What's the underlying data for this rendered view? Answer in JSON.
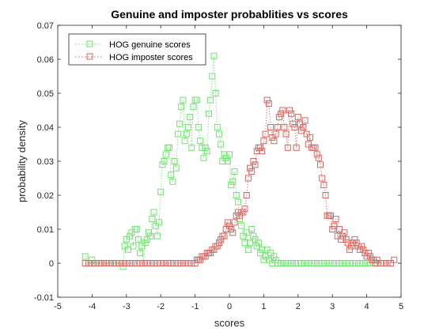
{
  "chart_data": {
    "type": "scatter",
    "title": "Genuine and imposter probablities vs scores",
    "xlabel": "scores",
    "ylabel": "probability density",
    "xlim": [
      -5,
      5
    ],
    "ylim": [
      -0.01,
      0.07
    ],
    "xticks": [
      "-5",
      "-4",
      "-3",
      "-2",
      "-1",
      "0",
      "1",
      "2",
      "3",
      "4",
      "5"
    ],
    "yticks": [
      "-0.01",
      "0",
      "0.01",
      "0.02",
      "0.03",
      "0.04",
      "0.05",
      "0.06",
      "0.07"
    ],
    "grid": false,
    "legend_position": "top-left",
    "series": [
      {
        "name": "HOG genuine scores",
        "color": "#6fe36f",
        "marker": "square",
        "line": "dotted",
        "points": [
          [
            -4.2,
            0.002
          ],
          [
            -4.1,
            0.0
          ],
          [
            -4.0,
            0.001
          ],
          [
            -3.9,
            0.0
          ],
          [
            -3.8,
            0.0
          ],
          [
            -3.7,
            0.0
          ],
          [
            -3.6,
            0.0
          ],
          [
            -3.5,
            0.0
          ],
          [
            -3.4,
            0.0
          ],
          [
            -3.3,
            0.0
          ],
          [
            -3.2,
            0.0
          ],
          [
            -3.1,
            -0.001
          ],
          [
            -3.05,
            0.005
          ],
          [
            -3.0,
            0.007
          ],
          [
            -2.95,
            0.004
          ],
          [
            -2.9,
            0.008
          ],
          [
            -2.85,
            0.009
          ],
          [
            -2.8,
            0.005
          ],
          [
            -2.75,
            0.01
          ],
          [
            -2.7,
            0.01
          ],
          [
            -2.65,
            0.007
          ],
          [
            -2.6,
            0.003
          ],
          [
            -2.55,
            0.005
          ],
          [
            -2.5,
            0.0
          ],
          [
            -2.45,
            0.006
          ],
          [
            -2.4,
            0.007
          ],
          [
            -2.35,
            0.009
          ],
          [
            -2.3,
            0.008
          ],
          [
            -2.25,
            0.013
          ],
          [
            -2.2,
            0.015
          ],
          [
            -2.15,
            0.011
          ],
          [
            -2.1,
            0.008
          ],
          [
            -2.05,
            0.012
          ],
          [
            -2.0,
            0.021
          ],
          [
            -1.95,
            0.029
          ],
          [
            -1.9,
            0.03
          ],
          [
            -1.85,
            0.032
          ],
          [
            -1.8,
            0.034
          ],
          [
            -1.75,
            0.034
          ],
          [
            -1.7,
            0.026
          ],
          [
            -1.65,
            0.024
          ],
          [
            -1.6,
            0.03
          ],
          [
            -1.55,
            0.028
          ],
          [
            -1.5,
            0.038
          ],
          [
            -1.45,
            0.041
          ],
          [
            -1.4,
            0.046
          ],
          [
            -1.35,
            0.048
          ],
          [
            -1.3,
            0.036
          ],
          [
            -1.25,
            0.038
          ],
          [
            -1.2,
            0.04
          ],
          [
            -1.15,
            0.043
          ],
          [
            -1.1,
            0.034
          ],
          [
            -1.05,
            0.046
          ],
          [
            -1.0,
            0.048
          ],
          [
            -0.95,
            0.048
          ],
          [
            -0.9,
            0.04
          ],
          [
            -0.85,
            0.036
          ],
          [
            -0.8,
            0.034
          ],
          [
            -0.75,
            0.031
          ],
          [
            -0.7,
            0.034
          ],
          [
            -0.65,
            0.033
          ],
          [
            -0.6,
            0.044
          ],
          [
            -0.55,
            0.048
          ],
          [
            -0.5,
            0.055
          ],
          [
            -0.45,
            0.061
          ],
          [
            -0.4,
            0.05
          ],
          [
            -0.35,
            0.04
          ],
          [
            -0.3,
            0.038
          ],
          [
            -0.25,
            0.035
          ],
          [
            -0.2,
            0.03
          ],
          [
            -0.15,
            0.032
          ],
          [
            -0.1,
            0.031
          ],
          [
            -0.05,
            0.03
          ],
          [
            0.0,
            0.032
          ],
          [
            0.05,
            0.023
          ],
          [
            0.1,
            0.024
          ],
          [
            0.15,
            0.027
          ],
          [
            0.2,
            0.02
          ],
          [
            0.25,
            0.018
          ],
          [
            0.3,
            0.013
          ],
          [
            0.35,
            0.011
          ],
          [
            0.4,
            0.008
          ],
          [
            0.45,
            0.006
          ],
          [
            0.5,
            0.009
          ],
          [
            0.55,
            0.004
          ],
          [
            0.6,
            0.006
          ],
          [
            0.65,
            0.01
          ],
          [
            0.7,
            0.008
          ],
          [
            0.75,
            0.007
          ],
          [
            0.8,
            0.005
          ],
          [
            0.85,
            0.006
          ],
          [
            0.9,
            0.003
          ],
          [
            0.95,
            0.004
          ],
          [
            1.0,
            0.001
          ],
          [
            1.05,
            0.002
          ],
          [
            1.1,
            0.004
          ],
          [
            1.15,
            0.001
          ],
          [
            1.2,
            0.003
          ],
          [
            1.25,
            0.0
          ],
          [
            1.3,
            0.002
          ],
          [
            1.35,
            0.001
          ],
          [
            1.4,
            0.0
          ],
          [
            1.5,
            0.0
          ],
          [
            1.6,
            0.0
          ],
          [
            1.7,
            0.0
          ],
          [
            1.8,
            0.0
          ],
          [
            1.9,
            0.0
          ],
          [
            2.0,
            0.0
          ],
          [
            2.1,
            0.0
          ],
          [
            2.2,
            0.0
          ],
          [
            2.3,
            0.0
          ],
          [
            2.4,
            0.0
          ],
          [
            2.5,
            0.0
          ],
          [
            2.6,
            0.0
          ],
          [
            2.7,
            0.0
          ],
          [
            2.8,
            0.0
          ],
          [
            2.9,
            0.0
          ],
          [
            3.0,
            0.0
          ],
          [
            3.1,
            0.0
          ],
          [
            3.2,
            0.0
          ],
          [
            3.3,
            0.0
          ],
          [
            3.4,
            0.0
          ],
          [
            3.5,
            0.0
          ],
          [
            3.6,
            0.0
          ],
          [
            3.7,
            0.0
          ],
          [
            3.8,
            0.0
          ],
          [
            3.9,
            0.0
          ],
          [
            4.0,
            0.0
          ],
          [
            4.1,
            0.0
          ],
          [
            4.2,
            0.0
          ],
          [
            4.3,
            0.0
          ],
          [
            4.4,
            0.0
          ]
        ]
      },
      {
        "name": "HOG imposter scores",
        "color": "#d9645f",
        "marker": "square",
        "line": "dotted",
        "points": [
          [
            -4.2,
            0.0
          ],
          [
            -4.1,
            0.0
          ],
          [
            -4.0,
            0.0
          ],
          [
            -3.9,
            0.0
          ],
          [
            -3.8,
            0.0
          ],
          [
            -3.7,
            0.0
          ],
          [
            -3.6,
            0.0
          ],
          [
            -3.5,
            0.0
          ],
          [
            -3.4,
            0.0
          ],
          [
            -3.3,
            0.0
          ],
          [
            -3.2,
            0.0
          ],
          [
            -3.1,
            0.0
          ],
          [
            -3.0,
            0.0
          ],
          [
            -2.9,
            0.0
          ],
          [
            -2.8,
            0.0
          ],
          [
            -2.7,
            0.0
          ],
          [
            -2.6,
            0.0
          ],
          [
            -2.5,
            0.0
          ],
          [
            -2.4,
            0.0
          ],
          [
            -2.3,
            0.0
          ],
          [
            -2.2,
            0.0
          ],
          [
            -2.1,
            0.0
          ],
          [
            -2.0,
            0.0
          ],
          [
            -1.9,
            0.0
          ],
          [
            -1.8,
            0.0
          ],
          [
            -1.7,
            0.0
          ],
          [
            -1.6,
            0.0
          ],
          [
            -1.5,
            0.0
          ],
          [
            -1.4,
            0.0
          ],
          [
            -1.3,
            0.0
          ],
          [
            -1.2,
            0.0
          ],
          [
            -1.1,
            0.0
          ],
          [
            -1.0,
            0.0
          ],
          [
            -0.95,
            0.001
          ],
          [
            -0.9,
            0.001
          ],
          [
            -0.85,
            0.001
          ],
          [
            -0.8,
            0.002
          ],
          [
            -0.75,
            0.002
          ],
          [
            -0.7,
            0.002
          ],
          [
            -0.65,
            0.003
          ],
          [
            -0.6,
            0.003
          ],
          [
            -0.55,
            0.003
          ],
          [
            -0.5,
            0.004
          ],
          [
            -0.45,
            0.004
          ],
          [
            -0.4,
            0.005
          ],
          [
            -0.35,
            0.005
          ],
          [
            -0.3,
            0.006
          ],
          [
            -0.25,
            0.007
          ],
          [
            -0.2,
            0.008
          ],
          [
            -0.15,
            0.008
          ],
          [
            -0.1,
            0.01
          ],
          [
            -0.05,
            0.012
          ],
          [
            0.0,
            0.011
          ],
          [
            0.05,
            0.01
          ],
          [
            0.1,
            0.009
          ],
          [
            0.15,
            0.012
          ],
          [
            0.2,
            0.014
          ],
          [
            0.25,
            0.015
          ],
          [
            0.3,
            0.014
          ],
          [
            0.35,
            0.015
          ],
          [
            0.4,
            0.015
          ],
          [
            0.45,
            0.016
          ],
          [
            0.5,
            0.02
          ],
          [
            0.55,
            0.025
          ],
          [
            0.6,
            0.028
          ],
          [
            0.65,
            0.027
          ],
          [
            0.7,
            0.03
          ],
          [
            0.75,
            0.029
          ],
          [
            0.8,
            0.033
          ],
          [
            0.85,
            0.034
          ],
          [
            0.9,
            0.034
          ],
          [
            0.95,
            0.033
          ],
          [
            1.0,
            0.036
          ],
          [
            1.05,
            0.038
          ],
          [
            1.1,
            0.048
          ],
          [
            1.15,
            0.047
          ],
          [
            1.2,
            0.04
          ],
          [
            1.25,
            0.037
          ],
          [
            1.3,
            0.036
          ],
          [
            1.35,
            0.038
          ],
          [
            1.4,
            0.04
          ],
          [
            1.45,
            0.043
          ],
          [
            1.5,
            0.044
          ],
          [
            1.55,
            0.045
          ],
          [
            1.6,
            0.04
          ],
          [
            1.65,
            0.038
          ],
          [
            1.7,
            0.034
          ],
          [
            1.75,
            0.045
          ],
          [
            1.8,
            0.044
          ],
          [
            1.85,
            0.041
          ],
          [
            1.9,
            0.04
          ],
          [
            1.95,
            0.034
          ],
          [
            2.0,
            0.043
          ],
          [
            2.05,
            0.041
          ],
          [
            2.1,
            0.039
          ],
          [
            2.15,
            0.04
          ],
          [
            2.2,
            0.042
          ],
          [
            2.25,
            0.038
          ],
          [
            2.3,
            0.035
          ],
          [
            2.35,
            0.037
          ],
          [
            2.4,
            0.034
          ],
          [
            2.45,
            0.034
          ],
          [
            2.5,
            0.034
          ],
          [
            2.55,
            0.032
          ],
          [
            2.6,
            0.031
          ],
          [
            2.65,
            0.029
          ],
          [
            2.7,
            0.025
          ],
          [
            2.75,
            0.023
          ],
          [
            2.8,
            0.02
          ],
          [
            2.85,
            0.014
          ],
          [
            2.9,
            0.014
          ],
          [
            2.95,
            0.014
          ],
          [
            3.0,
            0.01
          ],
          [
            3.05,
            0.011
          ],
          [
            3.1,
            0.013
          ],
          [
            3.15,
            0.008
          ],
          [
            3.2,
            0.01
          ],
          [
            3.25,
            0.007
          ],
          [
            3.3,
            0.008
          ],
          [
            3.35,
            0.009
          ],
          [
            3.4,
            0.007
          ],
          [
            3.45,
            0.006
          ],
          [
            3.5,
            0.004
          ],
          [
            3.55,
            0.005
          ],
          [
            3.6,
            0.006
          ],
          [
            3.65,
            0.007
          ],
          [
            3.7,
            0.006
          ],
          [
            3.75,
            0.005
          ],
          [
            3.8,
            0.004
          ],
          [
            3.85,
            0.005
          ],
          [
            3.9,
            0.004
          ],
          [
            3.95,
            0.003
          ],
          [
            4.0,
            0.002
          ],
          [
            4.05,
            0.003
          ],
          [
            4.1,
            0.002
          ],
          [
            4.15,
            0.001
          ],
          [
            4.2,
            0.001
          ],
          [
            4.25,
            0.0
          ],
          [
            4.3,
            0.001
          ],
          [
            4.4,
            0.0
          ],
          [
            4.5,
            0.0
          ],
          [
            4.6,
            0.0
          ],
          [
            4.7,
            0.0
          ],
          [
            4.8,
            0.001
          ]
        ]
      }
    ]
  }
}
